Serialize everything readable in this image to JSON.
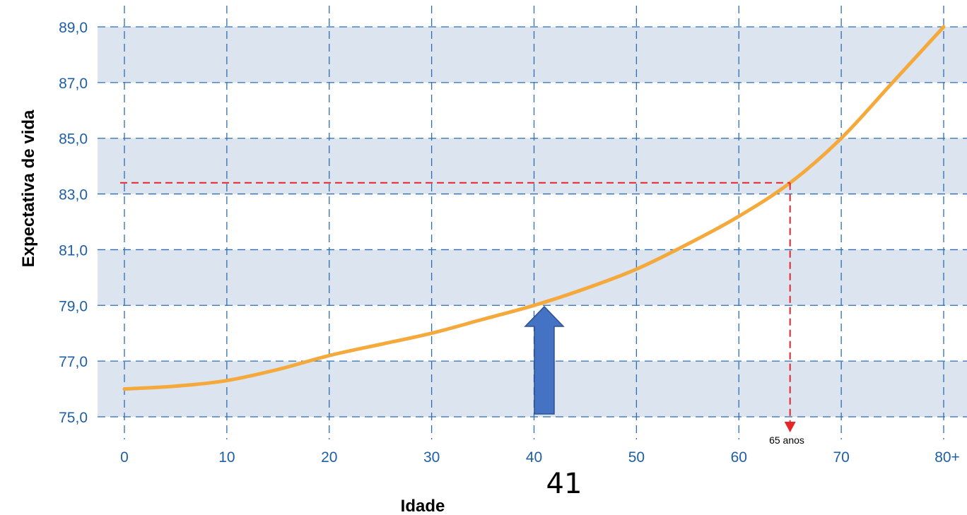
{
  "chart_data": {
    "type": "line",
    "xlabel": "Idade",
    "ylabel": "Expectativa de vida",
    "x_ticks": [
      "0",
      "10",
      "20",
      "30",
      "40",
      "50",
      "60",
      "70",
      "80+"
    ],
    "x_tick_values": [
      0,
      10,
      20,
      30,
      40,
      50,
      60,
      70,
      80
    ],
    "y_ticks": [
      "75,0",
      "77,0",
      "79,0",
      "81,0",
      "83,0",
      "85,0",
      "87,0",
      "89,0"
    ],
    "y_tick_values": [
      75,
      77,
      79,
      81,
      83,
      85,
      87,
      89
    ],
    "xlim": [
      0,
      80
    ],
    "ylim": [
      75,
      89
    ],
    "grid": true,
    "series": [
      {
        "x": [
          0,
          5,
          10,
          15,
          20,
          25,
          30,
          35,
          40,
          45,
          50,
          55,
          60,
          65,
          70,
          75,
          80
        ],
        "y": [
          76.0,
          76.1,
          76.3,
          76.7,
          77.2,
          77.6,
          78.0,
          78.5,
          79.0,
          79.6,
          80.3,
          81.2,
          82.2,
          83.4,
          85.0,
          87.0,
          89.0
        ],
        "color": "#f5a93b"
      }
    ],
    "annotations": {
      "reference_point": {
        "x": 65,
        "y": 83.4,
        "label": "65 anos",
        "color": "#e8242b"
      },
      "arrow": {
        "x": 41,
        "label": "41",
        "color": "#4472c4"
      }
    },
    "colors": {
      "band": "#dbe4ef",
      "grid": "#2e6db4",
      "tick_text": "#1f5fa6"
    }
  }
}
